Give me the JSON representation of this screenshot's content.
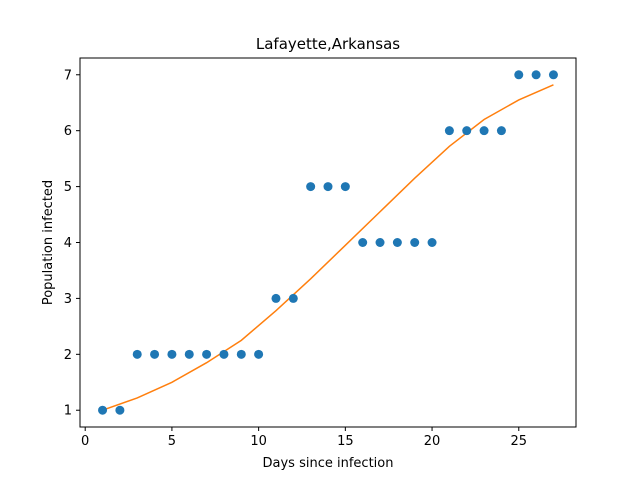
{
  "chart_data": {
    "type": "scatter",
    "title": "Lafayette,Arkansas",
    "xlabel": "Days since infection",
    "ylabel": "Population infected",
    "xlim": [
      -0.3,
      28.3
    ],
    "ylim": [
      0.7,
      7.3
    ],
    "xticks": [
      0,
      5,
      10,
      15,
      20,
      25
    ],
    "yticks": [
      1,
      2,
      3,
      4,
      5,
      6,
      7
    ],
    "grid": false,
    "legend": "none",
    "series": [
      {
        "kind": "scatter",
        "color": "#1f77b4",
        "x": [
          1,
          2,
          3,
          4,
          5,
          6,
          7,
          8,
          9,
          10,
          11,
          12,
          13,
          14,
          15,
          16,
          17,
          18,
          19,
          20,
          21,
          22,
          23,
          24,
          25,
          26,
          27
        ],
        "y": [
          1,
          1,
          2,
          2,
          2,
          2,
          2,
          2,
          2,
          2,
          3,
          3,
          5,
          5,
          5,
          4,
          4,
          4,
          4,
          4,
          6,
          6,
          6,
          6,
          7,
          7,
          7
        ]
      },
      {
        "kind": "line",
        "color": "#ff7f0e",
        "x": [
          1,
          3,
          5,
          7,
          9,
          11,
          13,
          15,
          17,
          19,
          21,
          23,
          25,
          27
        ],
        "y": [
          1.0,
          1.22,
          1.5,
          1.85,
          2.25,
          2.78,
          3.35,
          3.95,
          4.55,
          5.15,
          5.72,
          6.2,
          6.55,
          6.82
        ]
      }
    ]
  }
}
